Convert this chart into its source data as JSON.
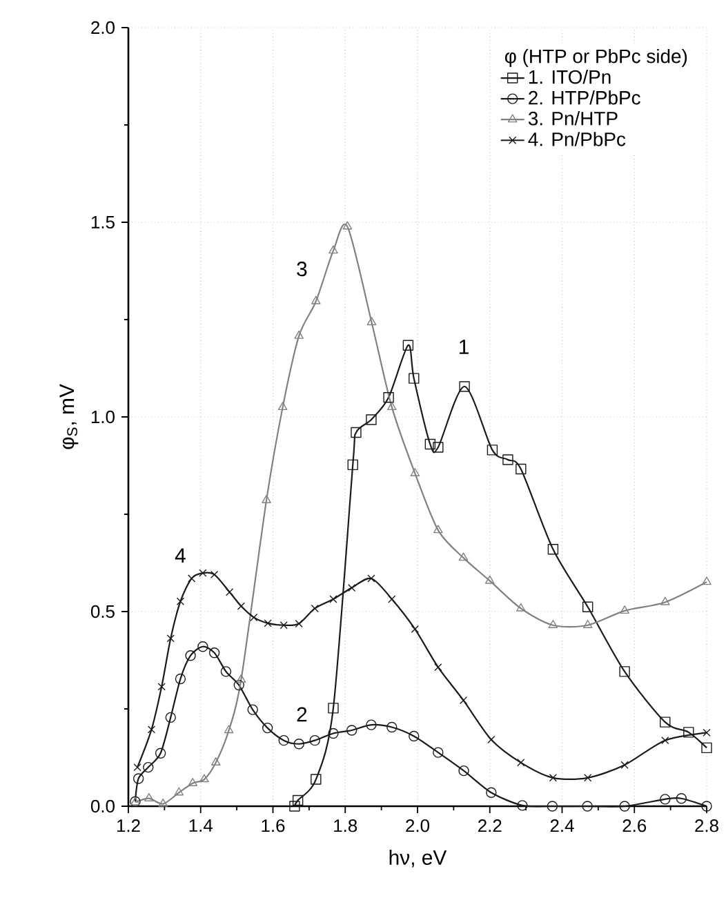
{
  "chart_data": {
    "type": "line",
    "xlabel": "hν, eV",
    "ylabel": "φ$_{S}$, mV",
    "legend_title": "φ (HTP or PbPc side)",
    "xlim": [
      1.2,
      2.8
    ],
    "ylim": [
      0,
      2.0
    ],
    "xticks": [
      1.2,
      1.4,
      1.6,
      1.8,
      {
        "value": 2.0,
        "label": "2.0"
      },
      2.2,
      2.4,
      2.6,
      2.8
    ],
    "yticks": [
      {
        "value": 0,
        "label": "0.0"
      },
      0.5,
      {
        "value": 1.0,
        "label": "1.0"
      },
      1.5,
      {
        "value": 2.0,
        "label": "2.0"
      }
    ],
    "grid": true,
    "legend": "top right",
    "series": [
      {
        "name": "1. ITO/Pn",
        "color": "#1a1a1a",
        "marker": "square",
        "x": [
          1.66,
          1.669,
          1.719,
          1.767,
          1.821,
          1.83,
          1.872,
          1.92,
          1.974,
          1.99,
          2.035,
          2.057,
          2.13,
          2.207,
          2.25,
          2.286,
          2.375,
          2.471,
          2.573,
          2.685,
          2.75,
          2.8
        ],
        "values": [
          0.0,
          0.015,
          0.069,
          0.252,
          0.877,
          0.96,
          0.993,
          1.05,
          1.184,
          1.099,
          0.93,
          0.922,
          1.078,
          0.915,
          0.89,
          0.866,
          0.66,
          0.512,
          0.346,
          0.216,
          0.19,
          0.15
        ]
      },
      {
        "name": "2. HTP/PbPc",
        "color": "#1a1a1a",
        "marker": "circle",
        "x": [
          1.219,
          1.228,
          1.255,
          1.289,
          1.317,
          1.344,
          1.372,
          1.406,
          1.438,
          1.47,
          1.506,
          1.544,
          1.585,
          1.63,
          1.672,
          1.716,
          1.767,
          1.818,
          1.872,
          1.929,
          1.99,
          2.057,
          2.128,
          2.204,
          2.29,
          2.373,
          2.47,
          2.573,
          2.685,
          2.73,
          2.8
        ],
        "values": [
          0.012,
          0.071,
          0.1,
          0.136,
          0.228,
          0.327,
          0.387,
          0.41,
          0.394,
          0.346,
          0.311,
          0.248,
          0.201,
          0.169,
          0.16,
          0.169,
          0.187,
          0.195,
          0.209,
          0.203,
          0.18,
          0.138,
          0.091,
          0.035,
          0.002,
          0.0,
          0.0,
          0.0,
          0.018,
          0.02,
          0.0
        ]
      },
      {
        "name": "3. Pn/HTP",
        "color": "#808080",
        "marker": "triangle",
        "x": [
          1.219,
          1.257,
          1.296,
          1.34,
          1.378,
          1.41,
          1.442,
          1.478,
          1.512,
          1.582,
          1.627,
          1.672,
          1.719,
          1.767,
          1.806,
          1.873,
          1.929,
          1.993,
          2.057,
          2.127,
          2.2,
          2.286,
          2.375,
          2.471,
          2.573,
          2.685,
          2.8
        ],
        "values": [
          0.01,
          0.02,
          0.006,
          0.035,
          0.059,
          0.069,
          0.112,
          0.195,
          0.325,
          0.786,
          1.025,
          1.208,
          1.297,
          1.427,
          1.489,
          1.243,
          1.025,
          0.855,
          0.709,
          0.638,
          0.579,
          0.508,
          0.465,
          0.465,
          0.502,
          0.524,
          0.576
        ]
      },
      {
        "name": "4. Pn/PbPc",
        "color": "#1a1a1a",
        "marker": "cross",
        "x": [
          1.225,
          1.264,
          1.292,
          1.317,
          1.344,
          1.375,
          1.406,
          1.438,
          1.48,
          1.512,
          1.547,
          1.586,
          1.63,
          1.672,
          1.716,
          1.767,
          1.818,
          1.872,
          1.929,
          1.993,
          2.057,
          2.127,
          2.204,
          2.286,
          2.375,
          2.471,
          2.573,
          2.685,
          2.8
        ],
        "values": [
          0.1,
          0.197,
          0.307,
          0.431,
          0.526,
          0.585,
          0.599,
          0.595,
          0.55,
          0.514,
          0.485,
          0.47,
          0.465,
          0.469,
          0.508,
          0.532,
          0.561,
          0.585,
          0.532,
          0.455,
          0.357,
          0.272,
          0.171,
          0.112,
          0.073,
          0.073,
          0.106,
          0.169,
          0.189
        ]
      }
    ],
    "annotations": [
      "1",
      "2",
      "3",
      "4"
    ]
  }
}
